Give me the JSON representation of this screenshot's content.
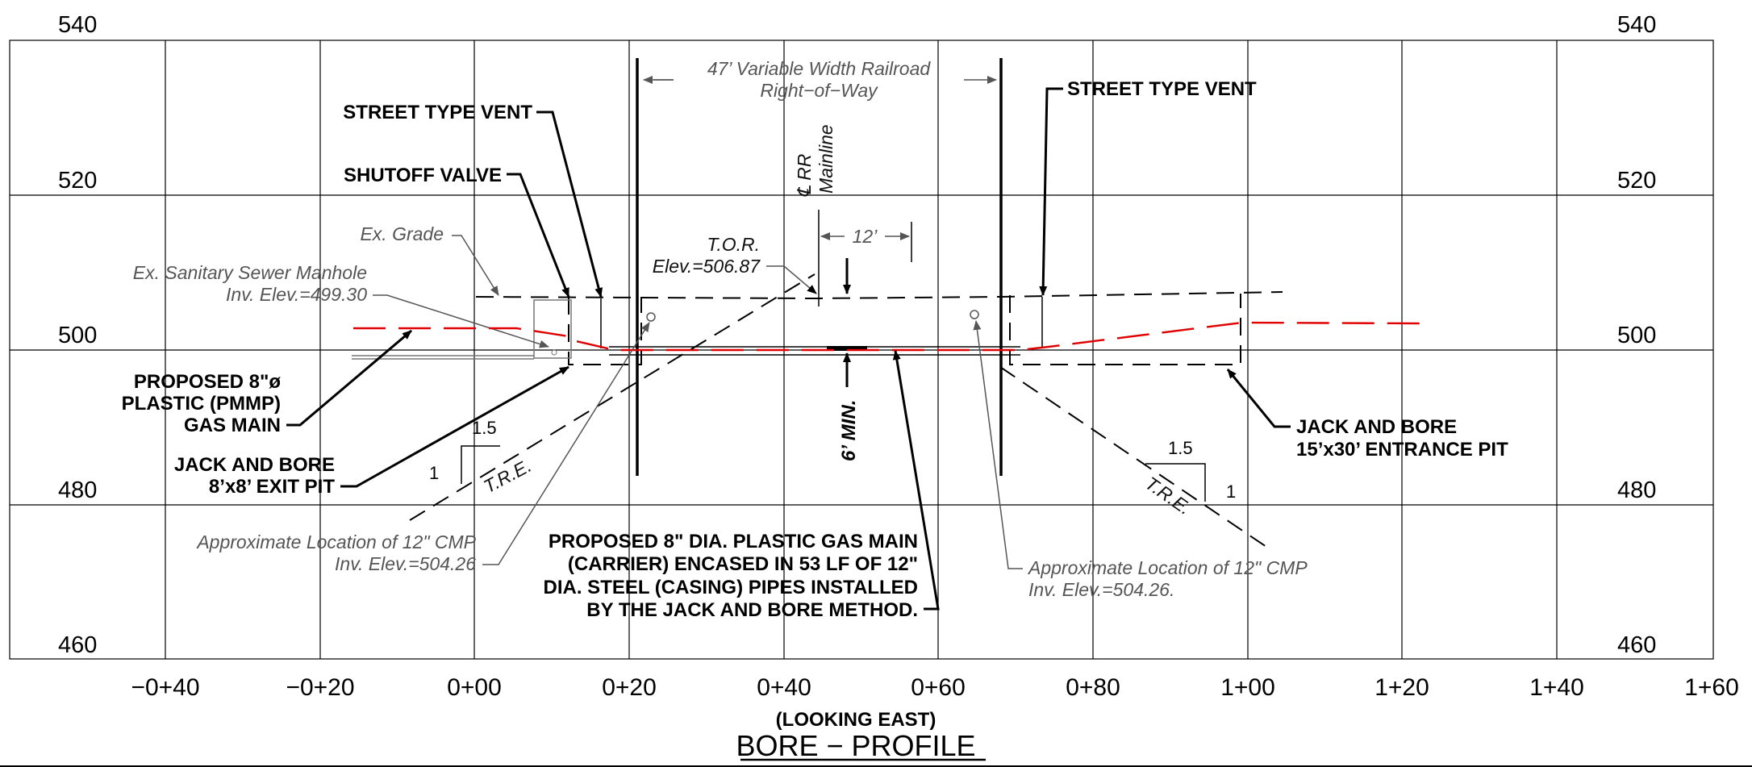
{
  "axes": {
    "elevations_left": [
      "540",
      "520",
      "500",
      "480",
      "460"
    ],
    "elevations_right": [
      "540",
      "520",
      "500",
      "480",
      "460"
    ],
    "stations": [
      "−0+40",
      "−0+20",
      "0+00",
      "0+20",
      "0+40",
      "0+60",
      "0+80",
      "1+00",
      "1+20",
      "1+40",
      "1+60"
    ]
  },
  "labels": {
    "row_label": "47’ Variable Width Railroad",
    "row_label_2": "Right−of−Way",
    "vent_left": "STREET TYPE VENT",
    "vent_right": "STREET TYPE VENT",
    "shutoff": "SHUTOFF VALVE",
    "rr_line1": "℄ RR",
    "rr_line2": "Mainline",
    "tor_line1": "T.O.R.",
    "tor_line2": "Elev.=506.87",
    "dim_12": "12’",
    "ex_grade": "Ex. Grade",
    "manhole_line1": "Ex. Sanitary Sewer Manhole",
    "manhole_line2": "Inv. Elev.=499.30",
    "gas_main_line1": "PROPOSED 8\"ø",
    "gas_main_line2": "PLASTIC (PMMP)",
    "gas_main_line3": "GAS MAIN",
    "exit_pit_line1": "JACK AND BORE",
    "exit_pit_line2": "8’x8’ EXIT PIT",
    "entrance_pit_line1": "JACK AND BORE",
    "entrance_pit_line2": "15’x30’ ENTRANCE PIT",
    "min_cover": "6’ MIN.",
    "slope_left_h": "1.5",
    "slope_left_v": "1",
    "slope_left_tre": "T.R.E.",
    "slope_right_h": "1.5",
    "slope_right_v": "1",
    "slope_right_tre": "T.R.E.",
    "cmp_left_line1": "Approximate Location of 12\" CMP",
    "cmp_left_line2": "Inv. Elev.=504.26",
    "cmp_right_line1": "Approximate Location of 12\" CMP",
    "cmp_right_line2": "Inv. Elev.=504.26.",
    "note_line1": "PROPOSED 8\" DIA. PLASTIC GAS MAIN",
    "note_line2": "(CARRIER) ENCASED IN 53 LF OF 12\"",
    "note_line3": "DIA. STEEL (CASING) PIPES INSTALLED",
    "note_line4": "BY THE JACK AND BORE METHOD.",
    "view_direction": "(LOOKING EAST)",
    "title": "BORE − PROFILE"
  },
  "colors": {
    "proposed_line": "#e00000",
    "existing_line": "#000000",
    "note_text": "#555555"
  }
}
